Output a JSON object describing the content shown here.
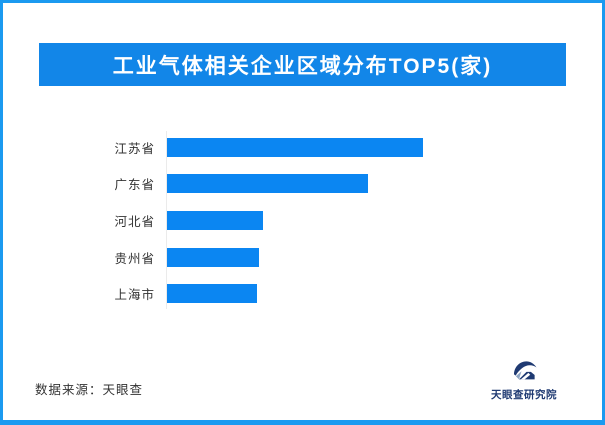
{
  "poster": {
    "title": "工业气体相关企业区域分布TOP5(家)",
    "source_caption": "数据来源：天眼查",
    "logo_text": "天眼查研究院"
  },
  "colors": {
    "border_blue": "#1b9af0",
    "banner_blue": "#1286e8",
    "bar_blue": "#0b86f2",
    "axis_gray": "#ebebeb",
    "label_dark": "#333333",
    "logo_navy": "#1f3a72",
    "logo_light": "#8fa6c4"
  },
  "chart_data": {
    "type": "bar",
    "orientation": "horizontal",
    "title": "工业气体相关企业区域分布TOP5(家)",
    "categories": [
      "江苏省",
      "广东省",
      "河北省",
      "贵州省",
      "上海市"
    ],
    "values": [
      256,
      201,
      96,
      92,
      90
    ],
    "values_note": "no numeric data labels or axis ticks shown; values are relative bar lengths in px",
    "values_relative_pct": [
      100,
      78.5,
      37.5,
      36,
      35.2
    ],
    "xlabel": "",
    "ylabel": "",
    "grid": false,
    "legend": false,
    "axis_labels_shown": false
  }
}
